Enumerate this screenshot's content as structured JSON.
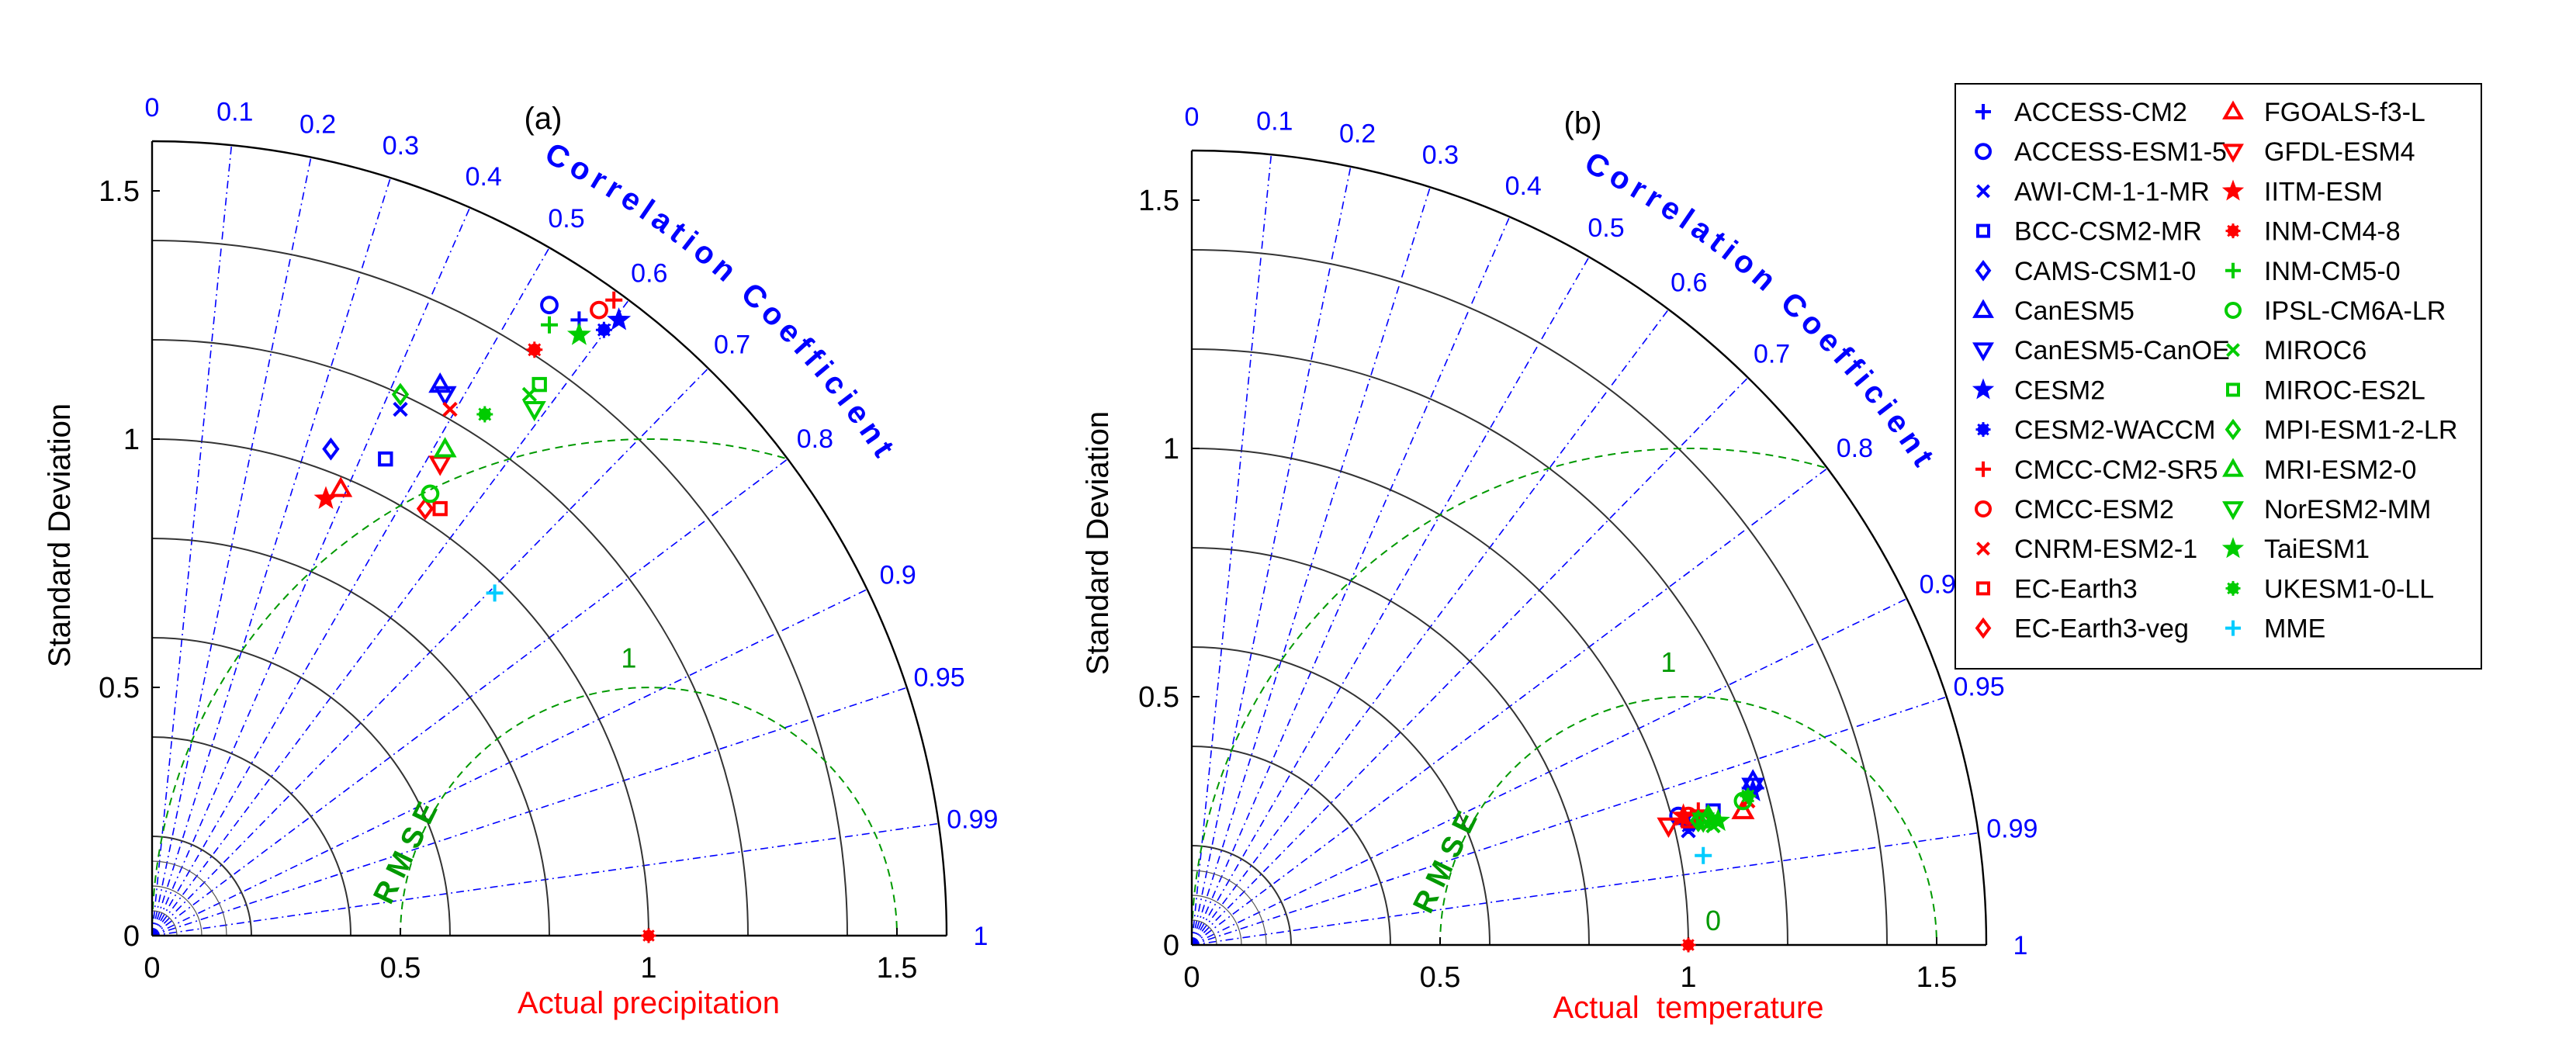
{
  "colors": {
    "corr": "#0000ff",
    "rmse": "#009900",
    "axis_label_x": "#ff0000",
    "reference": "#ff0000",
    "mme": "#00ccff"
  },
  "legend": {
    "items": [
      {
        "name": "ACCESS-CM2",
        "marker": "plus",
        "color": "#0000ff"
      },
      {
        "name": "ACCESS-ESM1-5",
        "marker": "circle",
        "color": "#0000ff"
      },
      {
        "name": "AWI-CM-1-1-MR",
        "marker": "x",
        "color": "#0000ff"
      },
      {
        "name": "BCC-CSM2-MR",
        "marker": "square",
        "color": "#0000ff"
      },
      {
        "name": "CAMS-CSM1-0",
        "marker": "diamond",
        "color": "#0000ff"
      },
      {
        "name": "CanESM5",
        "marker": "triangle-up",
        "color": "#0000ff"
      },
      {
        "name": "CanESM5-CanOE",
        "marker": "triangle-down",
        "color": "#0000ff"
      },
      {
        "name": "CESM2",
        "marker": "star",
        "color": "#0000ff"
      },
      {
        "name": "CESM2-WACCM",
        "marker": "asterisk",
        "color": "#0000ff"
      },
      {
        "name": "CMCC-CM2-SR5",
        "marker": "plus",
        "color": "#ff0000"
      },
      {
        "name": "CMCC-ESM2",
        "marker": "circle",
        "color": "#ff0000"
      },
      {
        "name": "CNRM-ESM2-1",
        "marker": "x",
        "color": "#ff0000"
      },
      {
        "name": "EC-Earth3",
        "marker": "square",
        "color": "#ff0000"
      },
      {
        "name": "EC-Earth3-veg",
        "marker": "diamond",
        "color": "#ff0000"
      },
      {
        "name": "FGOALS-f3-L",
        "marker": "triangle-up",
        "color": "#ff0000"
      },
      {
        "name": "GFDL-ESM4",
        "marker": "triangle-down",
        "color": "#ff0000"
      },
      {
        "name": "IITM-ESM",
        "marker": "star",
        "color": "#ff0000"
      },
      {
        "name": "INM-CM4-8",
        "marker": "asterisk",
        "color": "#ff0000"
      },
      {
        "name": "INM-CM5-0",
        "marker": "plus",
        "color": "#00cc00"
      },
      {
        "name": "IPSL-CM6A-LR",
        "marker": "circle",
        "color": "#00cc00"
      },
      {
        "name": "MIROC6",
        "marker": "x",
        "color": "#00cc00"
      },
      {
        "name": "MIROC-ES2L",
        "marker": "square",
        "color": "#00cc00"
      },
      {
        "name": "MPI-ESM1-2-LR",
        "marker": "diamond",
        "color": "#00cc00"
      },
      {
        "name": "MRI-ESM2-0",
        "marker": "triangle-up",
        "color": "#00cc00"
      },
      {
        "name": "NorESM2-MM",
        "marker": "triangle-down",
        "color": "#00cc00"
      },
      {
        "name": "TaiESM1",
        "marker": "star",
        "color": "#00cc00"
      },
      {
        "name": "UKESM1-0-LL",
        "marker": "asterisk",
        "color": "#00cc00"
      },
      {
        "name": "MME",
        "marker": "plus",
        "color": "#00ccff"
      }
    ]
  },
  "chart_data": [
    {
      "type": "scatter",
      "subtype": "taylor-diagram",
      "panel_label": "(a)",
      "xlabel": "Actual precipitation",
      "ylabel": "Standard Deviation",
      "corr_title": "Correlation Coefficient",
      "rmse_label": "RMSE",
      "xlim": [
        0,
        1.6
      ],
      "ylim": [
        0,
        1.6
      ],
      "std_ticks": [
        "0",
        "0.5",
        "1",
        "1.5"
      ],
      "corr_ticks": [
        "0",
        "0.1",
        "0.2",
        "0.3",
        "0.4",
        "0.5",
        "0.6",
        "0.7",
        "0.8",
        "0.9",
        "0.95",
        "0.99",
        "1"
      ],
      "rmse_ticks": [
        "1"
      ],
      "reference": {
        "x": 1.0,
        "y": 0.0
      },
      "points": [
        {
          "model": "ACCESS-CM2",
          "x": 0.86,
          "y": 1.24
        },
        {
          "model": "ACCESS-ESM1-5",
          "x": 0.8,
          "y": 1.27
        },
        {
          "model": "AWI-CM-1-1-MR",
          "x": 0.5,
          "y": 1.06
        },
        {
          "model": "BCC-CSM2-MR",
          "x": 0.47,
          "y": 0.96
        },
        {
          "model": "CAMS-CSM1-0",
          "x": 0.36,
          "y": 0.98
        },
        {
          "model": "CanESM5",
          "x": 0.58,
          "y": 1.11
        },
        {
          "model": "CanESM5-CanOE",
          "x": 0.59,
          "y": 1.09
        },
        {
          "model": "CESM2",
          "x": 0.94,
          "y": 1.24
        },
        {
          "model": "CESM2-WACCM",
          "x": 0.91,
          "y": 1.22
        },
        {
          "model": "CMCC-CM2-SR5",
          "x": 0.93,
          "y": 1.28
        },
        {
          "model": "CMCC-ESM2",
          "x": 0.9,
          "y": 1.26
        },
        {
          "model": "CNRM-ESM2-1",
          "x": 0.6,
          "y": 1.06
        },
        {
          "model": "EC-Earth3",
          "x": 0.58,
          "y": 0.86
        },
        {
          "model": "EC-Earth3-veg",
          "x": 0.55,
          "y": 0.86
        },
        {
          "model": "FGOALS-f3-L",
          "x": 0.38,
          "y": 0.9
        },
        {
          "model": "GFDL-ESM4",
          "x": 0.58,
          "y": 0.95
        },
        {
          "model": "IITM-ESM",
          "x": 0.35,
          "y": 0.88
        },
        {
          "model": "INM-CM4-8",
          "x": 0.77,
          "y": 1.18
        },
        {
          "model": "INM-CM5-0",
          "x": 0.8,
          "y": 1.23
        },
        {
          "model": "IPSL-CM6A-LR",
          "x": 0.56,
          "y": 0.89
        },
        {
          "model": "MIROC6",
          "x": 0.76,
          "y": 1.09
        },
        {
          "model": "MIROC-ES2L",
          "x": 0.78,
          "y": 1.11
        },
        {
          "model": "MPI-ESM1-2-LR",
          "x": 0.5,
          "y": 1.09
        },
        {
          "model": "MRI-ESM2-0",
          "x": 0.59,
          "y": 0.98
        },
        {
          "model": "NorESM2-MM",
          "x": 0.77,
          "y": 1.06
        },
        {
          "model": "TaiESM1",
          "x": 0.86,
          "y": 1.21
        },
        {
          "model": "UKESM1-0-LL",
          "x": 0.67,
          "y": 1.05
        },
        {
          "model": "MME",
          "x": 0.69,
          "y": 0.69
        }
      ]
    },
    {
      "type": "scatter",
      "subtype": "taylor-diagram",
      "panel_label": "(b)",
      "xlabel": "Actual  temperature",
      "ylabel": "Standard Deviation",
      "corr_title": "Correlation Coefficient",
      "rmse_label": "RMSE",
      "xlim": [
        0,
        1.6
      ],
      "ylim": [
        0,
        1.6
      ],
      "std_ticks": [
        "0",
        "0.5",
        "1",
        "1.5"
      ],
      "corr_ticks": [
        "0",
        "0.1",
        "0.2",
        "0.3",
        "0.4",
        "0.5",
        "0.6",
        "0.7",
        "0.8",
        "0.9",
        "0.95",
        "0.99",
        "1"
      ],
      "rmse_ticks": [
        "0",
        "1"
      ],
      "reference": {
        "x": 1.0,
        "y": 0.0
      },
      "points": [
        {
          "model": "ACCESS-CM2",
          "x": 1.0,
          "y": 0.25
        },
        {
          "model": "ACCESS-ESM1-5",
          "x": 0.98,
          "y": 0.26
        },
        {
          "model": "AWI-CM-1-1-MR",
          "x": 1.0,
          "y": 0.23
        },
        {
          "model": "BCC-CSM2-MR",
          "x": 1.05,
          "y": 0.27
        },
        {
          "model": "CAMS-CSM1-0",
          "x": 1.01,
          "y": 0.25
        },
        {
          "model": "CanESM5",
          "x": 1.13,
          "y": 0.33
        },
        {
          "model": "CanESM5-CanOE",
          "x": 1.13,
          "y": 0.32
        },
        {
          "model": "CESM2",
          "x": 1.13,
          "y": 0.31
        },
        {
          "model": "CESM2-WACCM",
          "x": 1.0,
          "y": 0.24
        },
        {
          "model": "CMCC-CM2-SR5",
          "x": 1.02,
          "y": 0.27
        },
        {
          "model": "CMCC-ESM2",
          "x": 1.0,
          "y": 0.26
        },
        {
          "model": "CNRM-ESM2-1",
          "x": 1.12,
          "y": 0.29
        },
        {
          "model": "EC-Earth3",
          "x": 1.0,
          "y": 0.25
        },
        {
          "model": "EC-Earth3-veg",
          "x": 1.03,
          "y": 0.25
        },
        {
          "model": "FGOALS-f3-L",
          "x": 1.11,
          "y": 0.27
        },
        {
          "model": "GFDL-ESM4",
          "x": 0.96,
          "y": 0.24
        },
        {
          "model": "IITM-ESM",
          "x": 0.99,
          "y": 0.26
        },
        {
          "model": "INM-CM4-8",
          "x": 1.02,
          "y": 0.25
        },
        {
          "model": "INM-CM5-0",
          "x": 1.04,
          "y": 0.26
        },
        {
          "model": "IPSL-CM6A-LR",
          "x": 1.11,
          "y": 0.29
        },
        {
          "model": "MIROC6",
          "x": 1.05,
          "y": 0.24
        },
        {
          "model": "MIROC-ES2L",
          "x": 1.03,
          "y": 0.25
        },
        {
          "model": "MPI-ESM1-2-LR",
          "x": 1.02,
          "y": 0.25
        },
        {
          "model": "MRI-ESM2-0",
          "x": 1.04,
          "y": 0.26
        },
        {
          "model": "NorESM2-MM",
          "x": 1.03,
          "y": 0.25
        },
        {
          "model": "TaiESM1",
          "x": 1.06,
          "y": 0.25
        },
        {
          "model": "UKESM1-0-LL",
          "x": 1.12,
          "y": 0.3
        },
        {
          "model": "MME",
          "x": 1.03,
          "y": 0.18
        }
      ]
    }
  ]
}
